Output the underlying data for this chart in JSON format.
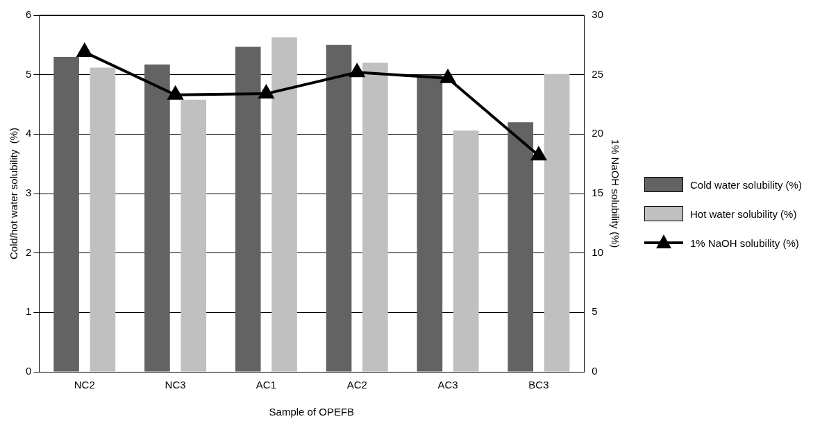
{
  "chart_data": {
    "type": "bar",
    "xlabel": "Sample of OPEFB",
    "ylabel": "Cold/hot water solubility  (%)",
    "y2label": "1% NaOH solubility (%)",
    "categories": [
      "NC2",
      "NC3",
      "AC1",
      "AC2",
      "AC3",
      "BC3"
    ],
    "series": [
      {
        "name": "Cold water solubility (%)",
        "color": "#636363",
        "values": [
          5.3,
          5.17,
          5.47,
          5.5,
          5.0,
          4.2
        ]
      },
      {
        "name": "Hot water solubility (%)",
        "color": "#c0c0c0",
        "values": [
          5.12,
          4.58,
          5.63,
          5.2,
          4.06,
          5.01
        ]
      },
      {
        "name": "1% NaOH solubility (%)",
        "type": "line",
        "axis": "y2",
        "color": "#000000",
        "marker": "triangle",
        "values": [
          26.9,
          23.3,
          23.4,
          25.2,
          24.7,
          18.2
        ]
      }
    ],
    "ylim": [
      0,
      6
    ],
    "yticks": [
      0,
      1,
      2,
      3,
      4,
      5,
      6
    ],
    "y2lim": [
      0,
      30
    ],
    "y2ticks": [
      0,
      5,
      10,
      15,
      20,
      25,
      30
    ],
    "grid": "y",
    "legend": "right"
  }
}
